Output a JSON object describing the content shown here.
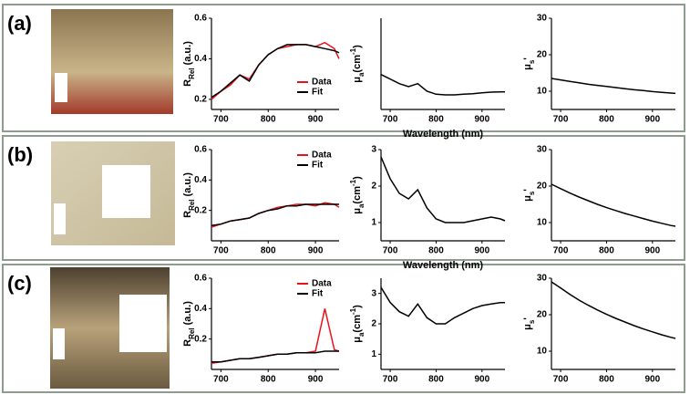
{
  "panel_labels": [
    "(a)",
    "(b)",
    "(c)"
  ],
  "chart_data": [
    {
      "type": "line",
      "x": [
        680,
        700,
        720,
        740,
        760,
        780,
        800,
        820,
        840,
        860,
        880,
        900,
        920,
        940,
        950
      ],
      "ylabel": [
        {
          "text": "R"
        },
        {
          "text": "Rel",
          "sub": true
        },
        {
          "text": " (a.u.)"
        }
      ],
      "series": [
        {
          "name": "Data",
          "color": "#e8141c",
          "values": [
            0.2,
            0.24,
            0.27,
            0.32,
            0.3,
            0.37,
            0.42,
            0.45,
            0.46,
            0.47,
            0.47,
            0.46,
            0.48,
            0.45,
            0.4
          ]
        },
        {
          "name": "Fit",
          "color": "#000000",
          "values": [
            0.21,
            0.24,
            0.28,
            0.32,
            0.29,
            0.37,
            0.42,
            0.45,
            0.47,
            0.47,
            0.47,
            0.46,
            0.45,
            0.44,
            0.43
          ]
        }
      ],
      "xlim": [
        680,
        950
      ],
      "xticks": [
        700,
        800,
        900
      ],
      "ylim": [
        0.15,
        0.6
      ],
      "yticks": [
        0.2,
        0.4,
        0.6
      ],
      "legend": "lower right"
    },
    {
      "type": "line",
      "x": [
        680,
        700,
        720,
        740,
        760,
        780,
        800,
        820,
        840,
        860,
        880,
        900,
        920,
        940,
        950
      ],
      "ylabel": [
        {
          "text": "μ"
        },
        {
          "text": "a",
          "sub": true
        },
        {
          "text": "(cm"
        },
        {
          "text": "-1",
          "sup": true
        },
        {
          "text": ")"
        }
      ],
      "series": [
        {
          "color": "#000000",
          "values": [
            1.15,
            1.0,
            0.85,
            0.75,
            0.85,
            0.6,
            0.5,
            0.48,
            0.48,
            0.5,
            0.52,
            0.55,
            0.57,
            0.58,
            0.58
          ]
        }
      ],
      "xlim": [
        680,
        950
      ],
      "xticks": [
        700,
        800,
        900
      ],
      "ylim": [
        0,
        3
      ],
      "yticks": [],
      "xlabel": "Wavelength (nm)"
    },
    {
      "type": "line",
      "x": [
        680,
        700,
        720,
        740,
        760,
        780,
        800,
        820,
        840,
        860,
        880,
        900,
        920,
        940,
        950
      ],
      "ylabel": [
        {
          "text": "μ"
        },
        {
          "text": "s",
          "sub": true
        },
        {
          "text": "'"
        }
      ],
      "series": [
        {
          "color": "#000000",
          "values": [
            13.5,
            13.1,
            12.7,
            12.3,
            11.9,
            11.6,
            11.3,
            11.0,
            10.7,
            10.4,
            10.2,
            9.9,
            9.7,
            9.5,
            9.4
          ]
        }
      ],
      "xlim": [
        680,
        950
      ],
      "xticks": [
        700,
        800,
        900
      ],
      "ylim": [
        5,
        30
      ],
      "yticks": [
        10,
        20,
        30
      ]
    },
    {
      "type": "line",
      "x": [
        680,
        700,
        720,
        740,
        760,
        780,
        800,
        820,
        840,
        860,
        880,
        900,
        920,
        940,
        950
      ],
      "ylabel": [
        {
          "text": "R"
        },
        {
          "text": "Rel",
          "sub": true
        },
        {
          "text": " (a.u.)"
        }
      ],
      "series": [
        {
          "name": "Data",
          "color": "#e8141c",
          "values": [
            0.09,
            0.11,
            0.13,
            0.14,
            0.15,
            0.18,
            0.2,
            0.22,
            0.23,
            0.24,
            0.24,
            0.23,
            0.25,
            0.24,
            0.22
          ]
        },
        {
          "name": "Fit",
          "color": "#000000",
          "values": [
            0.1,
            0.11,
            0.13,
            0.14,
            0.15,
            0.18,
            0.2,
            0.21,
            0.23,
            0.23,
            0.24,
            0.24,
            0.24,
            0.24,
            0.24
          ]
        }
      ],
      "xlim": [
        680,
        950
      ],
      "xticks": [
        700,
        800,
        900
      ],
      "ylim": [
        0,
        0.6
      ],
      "yticks": [
        0.2,
        0.4,
        0.6
      ],
      "legend": "upper right"
    },
    {
      "type": "line",
      "x": [
        680,
        700,
        720,
        740,
        760,
        780,
        800,
        820,
        840,
        860,
        880,
        900,
        920,
        940,
        950
      ],
      "ylabel": [
        {
          "text": "μ"
        },
        {
          "text": "a",
          "sub": true
        },
        {
          "text": "(cm"
        },
        {
          "text": "-1",
          "sup": true
        },
        {
          "text": ")"
        }
      ],
      "series": [
        {
          "color": "#000000",
          "values": [
            2.8,
            2.2,
            1.8,
            1.65,
            1.9,
            1.4,
            1.1,
            1.0,
            1.0,
            1.0,
            1.05,
            1.1,
            1.15,
            1.1,
            1.05
          ]
        }
      ],
      "xlim": [
        680,
        950
      ],
      "xticks": [
        700,
        800,
        900
      ],
      "ylim": [
        0.5,
        3
      ],
      "yticks": [
        1,
        2,
        3
      ],
      "xlabel": "Wavelength (nm)"
    },
    {
      "type": "line",
      "x": [
        680,
        700,
        720,
        740,
        760,
        780,
        800,
        820,
        840,
        860,
        880,
        900,
        920,
        940,
        950
      ],
      "ylabel": [
        {
          "text": "μ"
        },
        {
          "text": "s",
          "sub": true
        },
        {
          "text": "'"
        }
      ],
      "series": [
        {
          "color": "#000000",
          "values": [
            20.5,
            19.3,
            18.1,
            17.0,
            16.0,
            15.0,
            14.1,
            13.3,
            12.5,
            11.8,
            11.1,
            10.4,
            9.8,
            9.2,
            9.0
          ]
        }
      ],
      "xlim": [
        680,
        950
      ],
      "xticks": [
        700,
        800,
        900
      ],
      "ylim": [
        5,
        30
      ],
      "yticks": [
        10,
        20,
        30
      ]
    },
    {
      "type": "line",
      "x": [
        680,
        700,
        720,
        740,
        760,
        780,
        800,
        820,
        840,
        860,
        880,
        900,
        920,
        940,
        950
      ],
      "ylabel": [
        {
          "text": "R"
        },
        {
          "text": "Rel",
          "sub": true
        },
        {
          "text": " (a.u.)"
        }
      ],
      "series": [
        {
          "name": "Data",
          "color": "#e8141c",
          "values": [
            0.04,
            0.05,
            0.06,
            0.07,
            0.07,
            0.08,
            0.09,
            0.1,
            0.1,
            0.11,
            0.11,
            0.12,
            0.4,
            0.13,
            0.12
          ]
        },
        {
          "name": "Fit",
          "color": "#000000",
          "values": [
            0.05,
            0.05,
            0.06,
            0.07,
            0.07,
            0.08,
            0.09,
            0.1,
            0.1,
            0.11,
            0.11,
            0.11,
            0.12,
            0.12,
            0.12
          ]
        }
      ],
      "xlim": [
        680,
        950
      ],
      "xticks": [
        700,
        800,
        900
      ],
      "ylim": [
        0,
        0.6
      ],
      "yticks": [
        0.2,
        0.4,
        0.6
      ],
      "legend": "upper right"
    },
    {
      "type": "line",
      "x": [
        680,
        700,
        720,
        740,
        760,
        780,
        800,
        820,
        840,
        860,
        880,
        900,
        920,
        940,
        950
      ],
      "ylabel": [
        {
          "text": "μ"
        },
        {
          "text": "a",
          "sub": true
        },
        {
          "text": "(cm"
        },
        {
          "text": "-1",
          "sup": true
        },
        {
          "text": ")"
        }
      ],
      "series": [
        {
          "color": "#000000",
          "values": [
            3.2,
            2.7,
            2.4,
            2.25,
            2.65,
            2.2,
            2.0,
            2.0,
            2.2,
            2.35,
            2.5,
            2.6,
            2.65,
            2.7,
            2.7
          ]
        }
      ],
      "xlim": [
        680,
        950
      ],
      "xticks": [
        700,
        800,
        900
      ],
      "ylim": [
        0.5,
        3.5
      ],
      "yticks": [
        1,
        2,
        3
      ]
    },
    {
      "type": "line",
      "x": [
        680,
        700,
        720,
        740,
        760,
        780,
        800,
        820,
        840,
        860,
        880,
        900,
        920,
        940,
        950
      ],
      "ylabel": [
        {
          "text": "μ"
        },
        {
          "text": "s",
          "sub": true
        },
        {
          "text": "'"
        }
      ],
      "series": [
        {
          "color": "#000000",
          "values": [
            29,
            27.3,
            25.6,
            24.0,
            22.6,
            21.3,
            20.1,
            19.0,
            18.0,
            17.0,
            16.1,
            15.3,
            14.5,
            13.8,
            13.5
          ]
        }
      ],
      "xlim": [
        680,
        950
      ],
      "xticks": [
        700,
        800,
        900
      ],
      "ylim": [
        5,
        30
      ],
      "yticks": [
        10,
        20,
        30
      ]
    }
  ]
}
